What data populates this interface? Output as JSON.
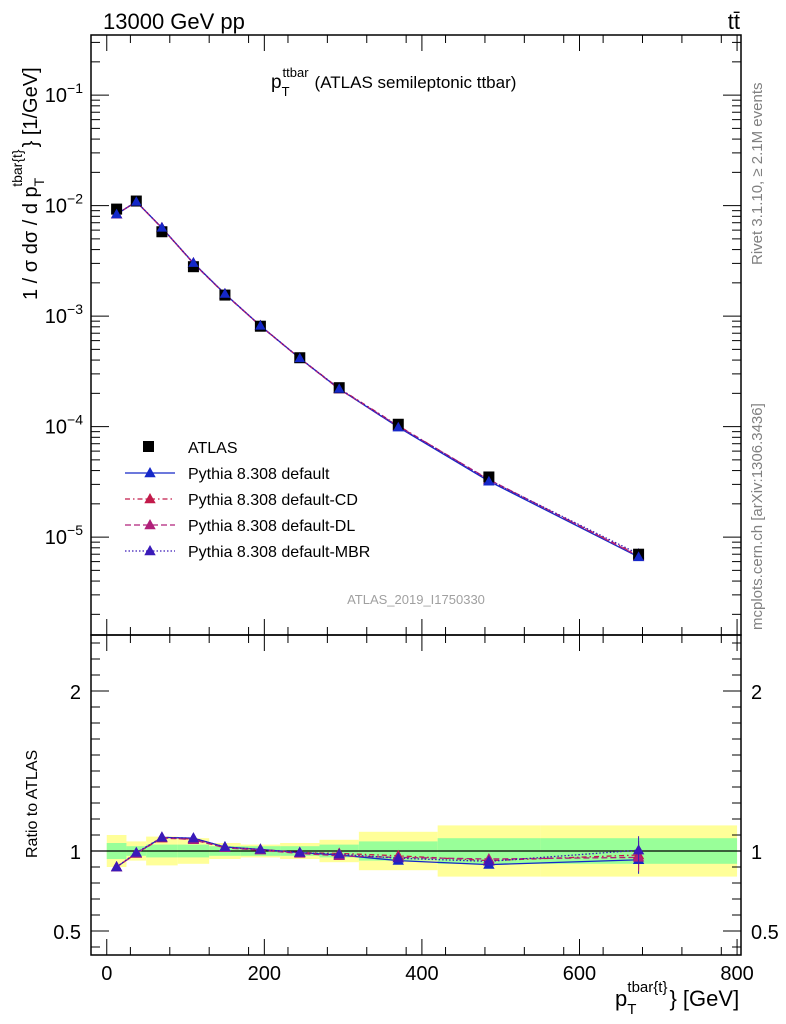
{
  "header": {
    "left": "13000 GeV pp",
    "right": "tt̄"
  },
  "side_labels": {
    "rivet": "Rivet 3.1.10, ≥ 2.1M events",
    "mcplots": "mcplots.cern.ch [arXiv:1306.3436]"
  },
  "chart_data": {
    "type": "line",
    "title": "p_T^ttbar (ATLAS semileptonic ttbar)",
    "title_main": "p",
    "title_sub": "T",
    "title_sup": "ttbar",
    "title_rest": "(ATLAS semileptonic ttbar)",
    "watermark": "ATLAS_2019_I1750330",
    "xlabel": "p_T^{tbar{t}} [GeV]",
    "ylabel": "1 / σ dσ / d p_T^{tbar{t}} [1/GeV]",
    "ratio_ylabel": "Ratio to ATLAS",
    "xlim": [
      -20,
      805
    ],
    "ylim_log": [
      1.3e-06,
      0.35
    ],
    "ratio_ylim": [
      0.35,
      2.35
    ],
    "x_ticks": [
      0,
      200,
      400,
      600,
      800
    ],
    "y_ticks_log": [
      {
        "value": 0.1,
        "label": "10^-1",
        "base": "10",
        "exp": "−1"
      },
      {
        "value": 0.01,
        "label": "10^-2",
        "base": "10",
        "exp": "−2"
      },
      {
        "value": 0.001,
        "label": "10^-3",
        "base": "10",
        "exp": "−3"
      },
      {
        "value": 0.0001,
        "label": "10^-4",
        "base": "10",
        "exp": "−4"
      },
      {
        "value": 1e-05,
        "label": "10^-5",
        "base": "10",
        "exp": "−5"
      }
    ],
    "ratio_ticks": [
      {
        "value": 0.5,
        "label": "0.5"
      },
      {
        "value": 1,
        "label": "1"
      },
      {
        "value": 2,
        "label": "2"
      }
    ],
    "bins": [
      [
        0,
        25
      ],
      [
        25,
        50
      ],
      [
        50,
        90
      ],
      [
        90,
        130
      ],
      [
        130,
        170
      ],
      [
        170,
        220
      ],
      [
        220,
        270
      ],
      [
        270,
        320
      ],
      [
        320,
        420
      ],
      [
        420,
        550
      ],
      [
        550,
        800
      ]
    ],
    "x": [
      12.5,
      37.5,
      70,
      110,
      150,
      195,
      245,
      295,
      370,
      485,
      675
    ],
    "data": {
      "name": "ATLAS",
      "values": [
        0.0093,
        0.011,
        0.0058,
        0.0028,
        0.00155,
        0.00081,
        0.00042,
        0.000225,
        0.000105,
        3.5e-05,
        7e-06
      ],
      "band_inner": [
        0.05,
        0.03,
        0.04,
        0.04,
        0.03,
        0.03,
        0.03,
        0.04,
        0.06,
        0.08,
        0.08
      ],
      "band_outer": [
        0.1,
        0.06,
        0.09,
        0.08,
        0.05,
        0.04,
        0.05,
        0.07,
        0.12,
        0.16,
        0.16
      ]
    },
    "series": [
      {
        "name": "Pythia 8.308 default",
        "color": "#1528c8",
        "dash": "",
        "ratio": [
          0.9,
          0.985,
          1.085,
          1.08,
          1.025,
          1.01,
          0.99,
          0.975,
          0.94,
          0.915,
          0.945
        ]
      },
      {
        "name": "Pythia 8.308 default-CD",
        "color": "#c21a4a",
        "dash": "5,3,1.5,3",
        "ratio": [
          0.9,
          0.985,
          1.08,
          1.075,
          1.02,
          1.01,
          0.99,
          0.985,
          0.97,
          0.94,
          0.975
        ]
      },
      {
        "name": "Pythia 8.308 default-DL",
        "color": "#b0207a",
        "dash": "6,3",
        "ratio": [
          0.9,
          0.985,
          1.085,
          1.07,
          1.02,
          1.005,
          0.985,
          0.97,
          0.96,
          0.95,
          0.96
        ]
      },
      {
        "name": "Pythia 8.308 default-MBR",
        "color": "#3a1ab8",
        "dash": "1.5,2",
        "ratio": [
          0.9,
          0.99,
          1.085,
          1.08,
          1.025,
          1.01,
          0.99,
          0.98,
          0.955,
          0.935,
          1.005
        ]
      }
    ],
    "legend_position": "lower-left",
    "grid": false
  }
}
